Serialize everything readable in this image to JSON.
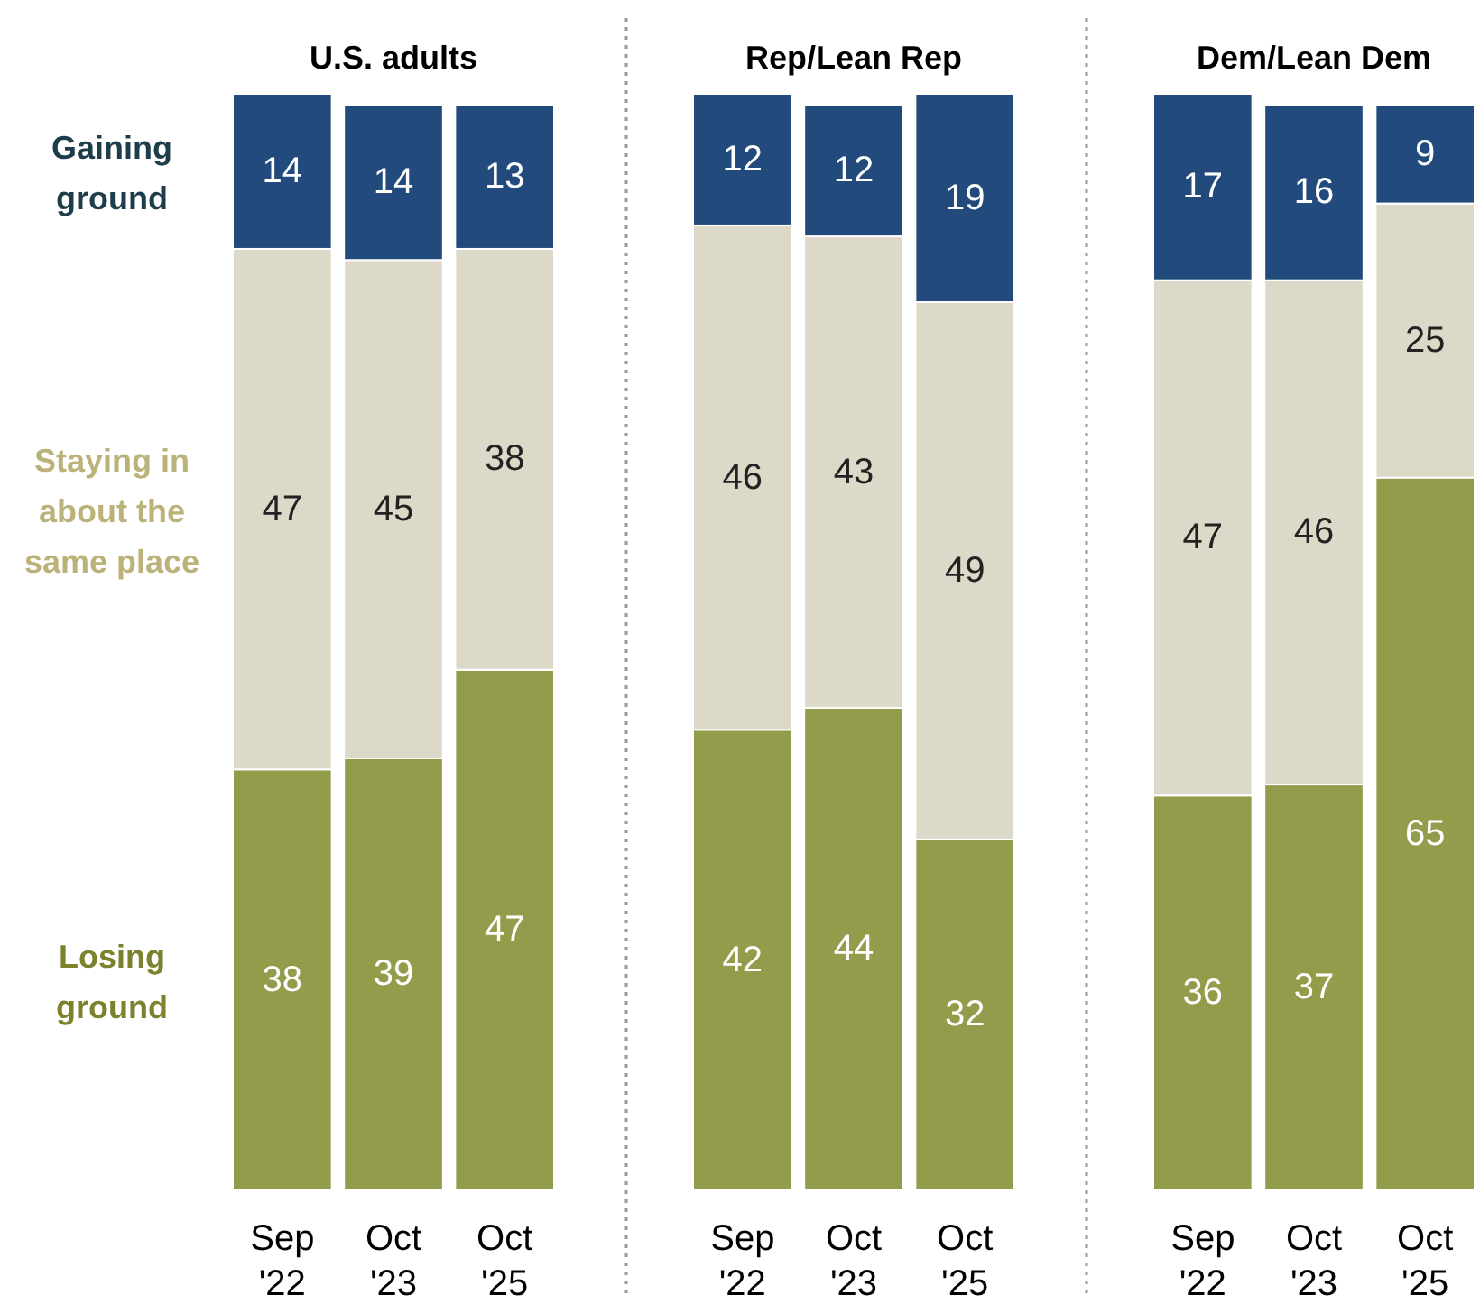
{
  "chart_data": [
    {
      "type": "bar",
      "title": "U.S. adults",
      "categories": [
        "Sep\n'22",
        "Oct\n'23",
        "Oct\n'25"
      ],
      "stacked": true,
      "data_labels": true,
      "legend": "left",
      "tick_labels": "x",
      "series": [
        {
          "name": "Losing\nground",
          "color": "#939c4a",
          "values": [
            38,
            39,
            47
          ]
        },
        {
          "name": "Staying in\nabout the\nsame place",
          "color": "#dcd9c9",
          "values": [
            47,
            45,
            38
          ]
        },
        {
          "name": "Gaining\nground",
          "color": "#234a7c",
          "values": [
            14,
            14,
            13
          ]
        }
      ]
    },
    {
      "type": "bar",
      "title": "Rep/Lean Rep",
      "categories": [
        "Sep\n'22",
        "Oct\n'23",
        "Oct\n'25"
      ],
      "stacked": true,
      "data_labels": true,
      "tick_labels": "x",
      "series": [
        {
          "color": "#939c4a",
          "values": [
            42,
            44,
            32
          ]
        },
        {
          "color": "#dcd9c9",
          "values": [
            46,
            43,
            49
          ]
        },
        {
          "color": "#234a7c",
          "values": [
            12,
            12,
            19
          ]
        }
      ]
    },
    {
      "type": "bar",
      "title": "Dem/Lean Dem",
      "categories": [
        "Sep\n'22",
        "Oct\n'23",
        "Oct\n'25"
      ],
      "stacked": true,
      "data_labels": true,
      "tick_labels": "x",
      "series": [
        {
          "color": "#939c4a",
          "values": [
            36,
            37,
            65
          ]
        },
        {
          "color": "#dcd9c9",
          "values": [
            47,
            46,
            25
          ]
        },
        {
          "color": "#234a7c",
          "values": [
            17,
            16,
            9
          ]
        }
      ]
    }
  ]
}
